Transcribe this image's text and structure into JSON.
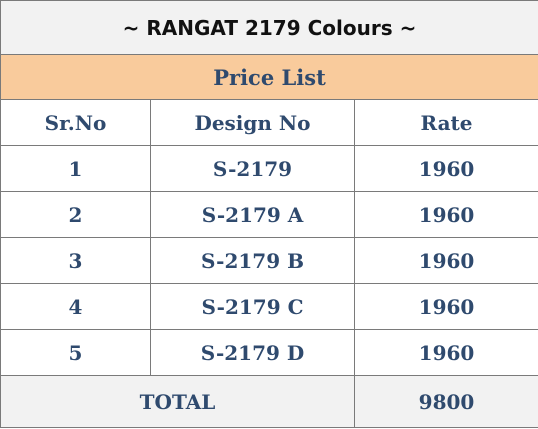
{
  "title": "~ RANGAT 2179 Colours ~",
  "subtitle": "Price List",
  "headers": {
    "sr_no": "Sr.No",
    "design_no": "Design No",
    "rate": "Rate"
  },
  "rows": [
    {
      "sr_no": "1",
      "design_no": "S-2179",
      "rate": "1960"
    },
    {
      "sr_no": "2",
      "design_no": "S-2179 A",
      "rate": "1960"
    },
    {
      "sr_no": "3",
      "design_no": "S-2179 B",
      "rate": "1960"
    },
    {
      "sr_no": "4",
      "design_no": "S-2179 C",
      "rate": "1960"
    },
    {
      "sr_no": "5",
      "design_no": "S-2179 D",
      "rate": "1960"
    }
  ],
  "total": {
    "label": "TOTAL",
    "value": "9800"
  },
  "colors": {
    "subtitle_background": "#f9cb9c",
    "text_blue": "#2f4a6e",
    "band_grey": "#f2f2f2",
    "border": "#7a7a7a"
  }
}
